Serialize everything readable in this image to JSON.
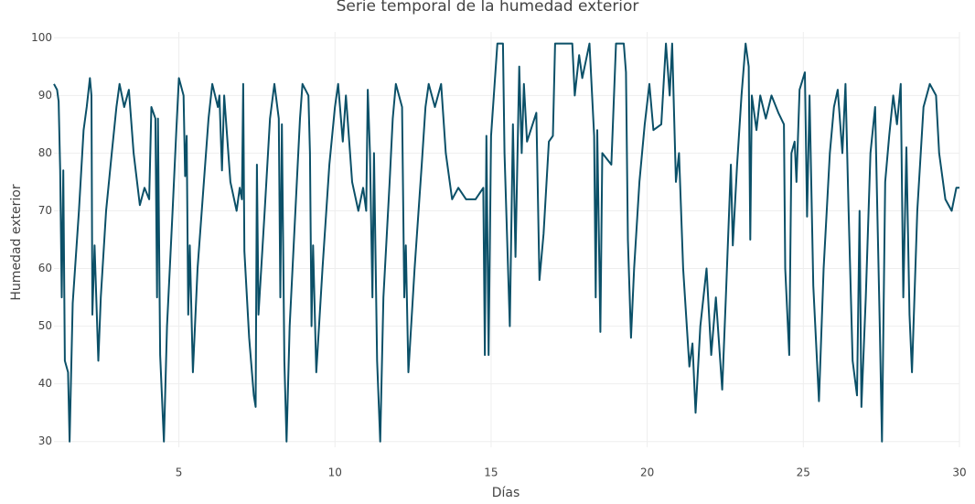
{
  "chart_data": {
    "type": "line",
    "title": "Serie temporal de la humedad exterior",
    "xlabel": "Días",
    "ylabel": "Humedad exterior",
    "color": "#0b5068",
    "grid": true,
    "xlim": [
      1,
      30
    ],
    "xticks": [
      5,
      10,
      15,
      20,
      25,
      30
    ],
    "ylim": [
      29,
      101
    ],
    "yticks": [
      30,
      40,
      50,
      60,
      70,
      80,
      90,
      100
    ],
    "x": [
      1,
      1.1,
      1.15,
      1.2,
      1.25,
      1.3,
      1.35,
      1.45,
      1.5,
      1.6,
      1.8,
      1.95,
      2.05,
      2.15,
      2.2,
      2.23,
      2.3,
      2.42,
      2.5,
      2.67,
      2.85,
      3.0,
      3.1,
      3.25,
      3.4,
      3.55,
      3.75,
      3.9,
      4.05,
      4.12,
      4.25,
      4.3,
      4.33,
      4.4,
      4.52,
      4.62,
      4.8,
      4.92,
      5.0,
      5.15,
      5.2,
      5.25,
      5.3,
      5.35,
      5.45,
      5.6,
      5.8,
      5.95,
      6.07,
      6.25,
      6.3,
      6.38,
      6.45,
      6.65,
      6.85,
      6.95,
      7.02,
      7.06,
      7.1,
      7.25,
      7.4,
      7.46,
      7.5,
      7.55,
      7.75,
      7.92,
      8.06,
      8.2,
      8.25,
      8.3,
      8.38,
      8.45,
      8.55,
      8.75,
      8.88,
      8.96,
      9.15,
      9.2,
      9.25,
      9.3,
      9.4,
      9.6,
      9.82,
      10.0,
      10.1,
      10.25,
      10.35,
      10.55,
      10.75,
      10.9,
      11.0,
      11.05,
      11.12,
      11.2,
      11.25,
      11.35,
      11.45,
      11.55,
      11.75,
      11.85,
      11.95,
      12.15,
      12.22,
      12.27,
      12.35,
      12.55,
      12.78,
      12.9,
      13.0,
      13.2,
      13.4,
      13.55,
      13.75,
      13.95,
      14.2,
      14.5,
      14.75,
      14.8,
      14.85,
      14.92,
      15.0,
      15.2,
      15.38,
      15.43,
      15.6,
      15.7,
      15.78,
      15.9,
      15.98,
      16.05,
      16.15,
      16.45,
      16.55,
      16.68,
      16.85,
      16.98,
      17.05,
      17.6,
      17.68,
      17.82,
      17.92,
      18.15,
      18.3,
      18.35,
      18.4,
      18.5,
      18.56,
      18.85,
      19.0,
      19.25,
      19.32,
      19.38,
      19.48,
      19.58,
      19.75,
      19.92,
      20.07,
      20.2,
      20.45,
      20.6,
      20.72,
      20.8,
      20.92,
      21.02,
      21.15,
      21.35,
      21.45,
      21.55,
      21.7,
      21.9,
      22.05,
      22.2,
      22.4,
      22.52,
      22.68,
      22.74,
      22.88,
      23.02,
      23.15,
      23.25,
      23.3,
      23.35,
      23.5,
      23.62,
      23.8,
      23.98,
      24.2,
      24.38,
      24.42,
      24.55,
      24.62,
      24.72,
      24.78,
      24.88,
      25.05,
      25.12,
      25.2,
      25.32,
      25.5,
      25.65,
      25.85,
      25.98,
      26.1,
      26.25,
      26.35,
      26.45,
      26.58,
      26.72,
      26.8,
      26.86,
      27.0,
      27.15,
      27.3,
      27.45,
      27.52,
      27.62,
      27.75,
      27.88,
      28.0,
      28.12,
      28.2,
      28.3,
      28.4,
      28.48,
      28.65,
      28.85,
      29.05,
      29.25,
      29.35,
      29.55,
      29.75,
      29.9,
      30.0
    ],
    "values": [
      92,
      91,
      89,
      77,
      55,
      77,
      44,
      42,
      30,
      54,
      70,
      84,
      88,
      93,
      90,
      52,
      64,
      44,
      55,
      70,
      80,
      88,
      92,
      88,
      91,
      80,
      71,
      74,
      72,
      88,
      86,
      55,
      86,
      45,
      30,
      50,
      70,
      84,
      93,
      90,
      76,
      83,
      52,
      64,
      42,
      60,
      75,
      86,
      92,
      88,
      90,
      77,
      90,
      75,
      70,
      74,
      72,
      92,
      63,
      48,
      38,
      36,
      78,
      52,
      70,
      86,
      92,
      86,
      55,
      85,
      44,
      30,
      50,
      72,
      86,
      92,
      90,
      80,
      50,
      64,
      42,
      60,
      78,
      88,
      92,
      82,
      90,
      75,
      70,
      74,
      70,
      91,
      80,
      55,
      80,
      44,
      30,
      55,
      75,
      86,
      92,
      88,
      55,
      64,
      42,
      60,
      78,
      88,
      92,
      88,
      92,
      80,
      72,
      74,
      72,
      72,
      74,
      45,
      83,
      45,
      83,
      99,
      99,
      80,
      50,
      85,
      62,
      95,
      80,
      92,
      82,
      87,
      58,
      66,
      82,
      83,
      99,
      99,
      90,
      97,
      93,
      99,
      83,
      55,
      84,
      49,
      80,
      78,
      99,
      99,
      94,
      65,
      48,
      60,
      75,
      85,
      92,
      84,
      85,
      99,
      90,
      99,
      75,
      80,
      60,
      43,
      47,
      35,
      50,
      60,
      45,
      55,
      39,
      55,
      78,
      64,
      78,
      90,
      99,
      95,
      65,
      90,
      84,
      90,
      86,
      90,
      87,
      85,
      60,
      45,
      80,
      82,
      75,
      91,
      94,
      69,
      90,
      57,
      37,
      60,
      80,
      88,
      91,
      80,
      92,
      70,
      44,
      38,
      70,
      36,
      55,
      80,
      88,
      50,
      30,
      75,
      83,
      90,
      85,
      92,
      55,
      81,
      52,
      42,
      70,
      88,
      92,
      90,
      80,
      72,
      70,
      74,
      74
    ]
  }
}
